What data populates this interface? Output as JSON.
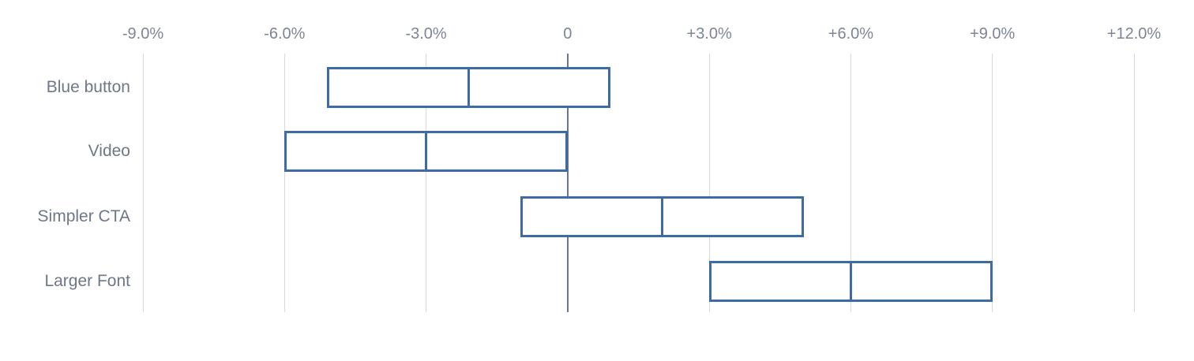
{
  "chart_data": {
    "type": "range_bar",
    "title": "",
    "orientation": "horizontal",
    "unit": "%",
    "categories": [
      "Blue button",
      "Video",
      "Simpler CTA",
      "Larger Font"
    ],
    "series": [
      {
        "name": "Blue button",
        "low": -5.1,
        "mid": -2.1,
        "high": 0.9
      },
      {
        "name": "Video",
        "low": -6.0,
        "mid": -3.0,
        "high": 0.0
      },
      {
        "name": "Simpler CTA",
        "low": -1.0,
        "mid": 2.0,
        "high": 5.0
      },
      {
        "name": "Larger Font",
        "low": 3.0,
        "mid": 6.0,
        "high": 9.0
      }
    ],
    "x_ticks": [
      {
        "label": "-9.0%",
        "value": -9
      },
      {
        "label": "-6.0%",
        "value": -6
      },
      {
        "label": "-3.0%",
        "value": -3
      },
      {
        "label": "0",
        "value": 0
      },
      {
        "label": "+3.0%",
        "value": 3
      },
      {
        "label": "+6.0%",
        "value": 6
      },
      {
        "label": "+9.0%",
        "value": 9
      },
      {
        "label": "+12.0%",
        "value": 12
      }
    ],
    "xlim": [
      -9,
      12
    ],
    "grid": "vertical-only",
    "zero_line": true,
    "legend": "none",
    "axis_position": "top"
  },
  "colors": {
    "background": "#FFFFFF",
    "bar_border": "#3E6BA3",
    "bar_fill": "#FFFFFF",
    "gridline": "#D9D9D9",
    "zero_line": "#6B7585",
    "tick_label": "#7C8597",
    "category_label": "#6E7787"
  }
}
